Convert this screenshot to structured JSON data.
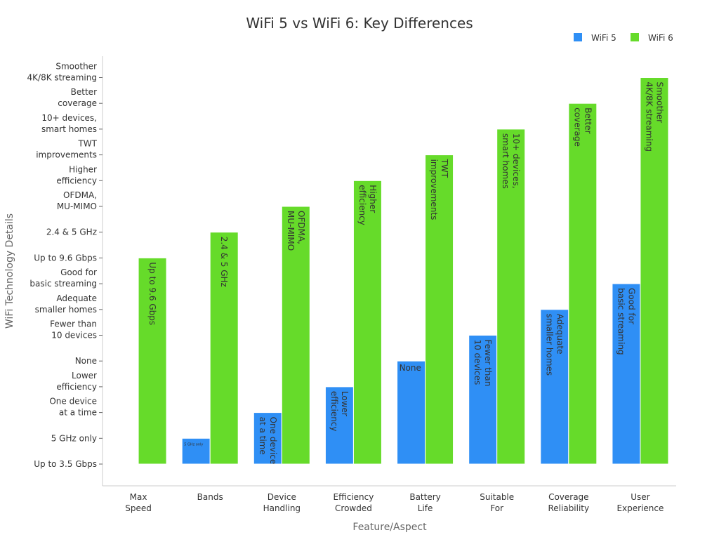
{
  "chart_data": {
    "type": "bar",
    "title": "WiFi 5 vs WiFi 6: Key Differences",
    "xlabel": "Feature/Aspect",
    "ylabel": "WiFi Technology Details",
    "legend_position": "top-right",
    "grid": false,
    "categories": [
      "Max\nSpeed",
      "Bands",
      "Device\nHandling",
      "Efficiency\nCrowded",
      "Battery\nLife",
      "Suitable\nFor",
      "Coverage\nReliability",
      "User\nExperience"
    ],
    "y_categories": [
      "Up to 3.5 Gbps",
      "5 GHz only",
      "One device\nat a time",
      "Lower\nefficiency",
      "None",
      "Fewer than\n10 devices",
      "Adequate\nsmaller homes",
      "Good for\nbasic streaming",
      "Up to 9.6 Gbps",
      "2.4 & 5 GHz",
      "OFDMA,\nMU-MIMO",
      "Higher\nefficiency",
      "TWT\nimprovements",
      "10+ devices,\nsmart homes",
      "Better\ncoverage",
      "Smoother\n4K/8K streaming"
    ],
    "series": [
      {
        "name": "WiFi 5",
        "color": "#2f8ff5",
        "values": [
          "Up to 3.5 Gbps",
          "5 GHz only",
          "One device\nat a time",
          "Lower\nefficiency",
          "None",
          "Fewer than\n10 devices",
          "Adequate\nsmaller homes",
          "Good for\nbasic streaming"
        ]
      },
      {
        "name": "WiFi 6",
        "color": "#66db2a",
        "values": [
          "Up to 9.6 Gbps",
          "2.4 & 5 GHz",
          "OFDMA,\nMU-MIMO",
          "Higher\nefficiency",
          "TWT\nimprovements",
          "10+ devices,\nsmart homes",
          "Better\ncoverage",
          "Smoother\n4K/8K streaming"
        ]
      }
    ]
  }
}
